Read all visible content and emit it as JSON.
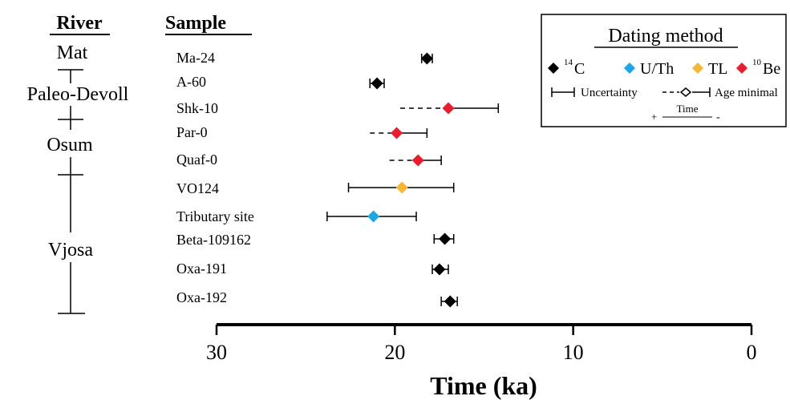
{
  "chart_data": {
    "type": "scatter",
    "xlabel": "Time (ka)",
    "xlim": [
      30,
      0
    ],
    "xticks": [
      "30",
      "20",
      "10",
      "0"
    ],
    "rivers_header": "River",
    "samples_header": "Sample",
    "rivers": [
      "Mat",
      "Paleo-Devoll",
      "Osum",
      "Vjosa"
    ],
    "samples": [
      {
        "name": "Ma-24",
        "method": "14C",
        "age": 18.2,
        "low": 17.9,
        "high": 18.5
      },
      {
        "name": "A-60",
        "method": "14C",
        "age": 21.0,
        "low": 20.6,
        "high": 21.4
      },
      {
        "name": "Shk-10",
        "method": "10Be",
        "age": 17.0,
        "low": 14.2,
        "high": 19.7,
        "minimal": true
      },
      {
        "name": "Par-0",
        "method": "10Be",
        "age": 19.9,
        "low": 18.2,
        "high": 21.4,
        "minimal": true
      },
      {
        "name": "Quaf-0",
        "method": "10Be",
        "age": 18.7,
        "low": 17.4,
        "high": 20.3,
        "minimal": true
      },
      {
        "name": "VO124",
        "method": "TL",
        "age": 19.6,
        "low": 16.7,
        "high": 22.6
      },
      {
        "name": "Tributary site",
        "method": "U/Th",
        "age": 21.2,
        "low": 18.8,
        "high": 23.8
      },
      {
        "name": "Beta-109162",
        "method": "14C",
        "age": 17.2,
        "low": 16.7,
        "high": 17.8
      },
      {
        "name": "Oxa-191",
        "method": "14C",
        "age": 17.5,
        "low": 17.0,
        "high": 17.9
      },
      {
        "name": "Oxa-192",
        "method": "14C",
        "age": 16.9,
        "low": 16.5,
        "high": 17.4
      }
    ],
    "legend": {
      "title": "Dating method",
      "methods": [
        {
          "key": "14C",
          "sup": "14",
          "label": "C",
          "color": "#000000"
        },
        {
          "key": "U/Th",
          "sup": "",
          "label": "U/Th",
          "color": "#1ba6e6"
        },
        {
          "key": "TL",
          "sup": "",
          "label": "TL",
          "color": "#f7b731"
        },
        {
          "key": "10Be",
          "sup": "10",
          "label": "Be",
          "color": "#ec1c2e"
        }
      ],
      "uncertainty_label": "Uncertainty",
      "minimal_label": "Age minimal",
      "time_label": "Time",
      "plus": "+",
      "minus": "-"
    }
  }
}
